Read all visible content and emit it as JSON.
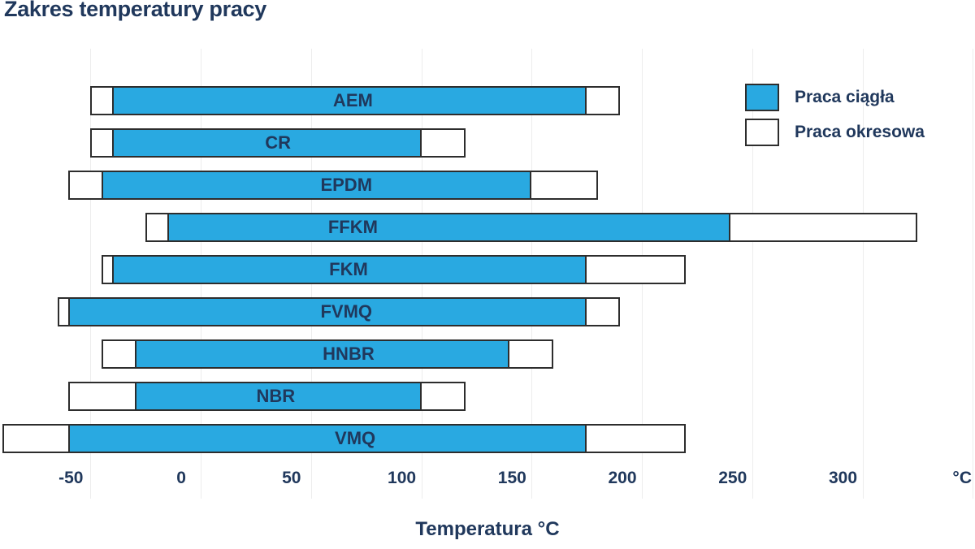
{
  "chart_data": {
    "type": "bar",
    "orientation": "horizontal",
    "title": "Zakres temperatury pracy",
    "xlabel": "Temperatura °C",
    "x_unit_label": "°C",
    "xlim": [
      -91,
      351
    ],
    "xticks": [
      -50,
      0,
      50,
      100,
      150,
      200,
      250,
      300
    ],
    "gridlines": [
      -50,
      0,
      50,
      100,
      150,
      200,
      250,
      300,
      350
    ],
    "grid": true,
    "legend_position": "top-right",
    "legend": [
      {
        "series": "continuous",
        "label": "Praca ciągła"
      },
      {
        "series": "periodic",
        "label": "Praca okresowa"
      }
    ],
    "colors": {
      "continuous": "#29A9E1",
      "periodic": "#FFFFFF",
      "bar_border": "#2D2D2D",
      "text": "#20385C"
    },
    "rows": [
      {
        "name": "AEM",
        "periodic": [
          -50,
          190
        ],
        "continuous": [
          -40,
          175
        ],
        "label_t": 69
      },
      {
        "name": "CR",
        "periodic": [
          -50,
          120
        ],
        "continuous": [
          -40,
          100
        ],
        "label_t": 35
      },
      {
        "name": "EPDM",
        "periodic": [
          -60,
          180
        ],
        "continuous": [
          -45,
          150
        ],
        "label_t": 66
      },
      {
        "name": "FFKM",
        "periodic": [
          -25,
          325
        ],
        "continuous": [
          -15,
          240
        ],
        "label_t": 69
      },
      {
        "name": "FKM",
        "periodic": [
          -45,
          220
        ],
        "continuous": [
          -40,
          175
        ],
        "label_t": 67
      },
      {
        "name": "FVMQ",
        "periodic": [
          -65,
          190
        ],
        "continuous": [
          -60,
          175
        ],
        "label_t": 66
      },
      {
        "name": "HNBR",
        "periodic": [
          -45,
          160
        ],
        "continuous": [
          -30,
          140
        ],
        "label_t": 67
      },
      {
        "name": "NBR",
        "periodic": [
          -60,
          120
        ],
        "continuous": [
          -30,
          100
        ],
        "label_t": 34
      },
      {
        "name": "VMQ",
        "periodic": [
          -90,
          220
        ],
        "continuous": [
          -60,
          175
        ],
        "label_t": 70
      }
    ]
  }
}
